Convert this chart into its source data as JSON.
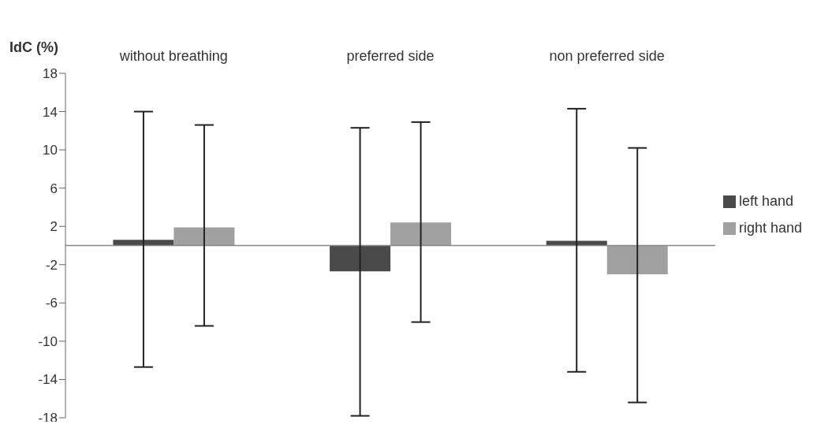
{
  "chart_data": {
    "type": "bar",
    "ylabel": "IdC (%)",
    "categories": [
      "without breathing",
      "preferred side",
      "non preferred side"
    ],
    "series": [
      {
        "name": "left hand",
        "color": "#4a4a4a",
        "values": [
          0.6,
          -2.7,
          0.5
        ],
        "errors": [
          [
            -12.7,
            14.0
          ],
          [
            -17.8,
            12.3
          ],
          [
            -13.2,
            14.3
          ]
        ]
      },
      {
        "name": "right hand",
        "color": "#a0a0a0",
        "values": [
          1.9,
          2.4,
          -3.0
        ],
        "errors": [
          [
            -8.4,
            12.6
          ],
          [
            -8.0,
            12.9
          ],
          [
            -16.4,
            10.2
          ]
        ]
      }
    ],
    "ylim": [
      -18,
      18
    ],
    "yticks": [
      18,
      14,
      10,
      6,
      2,
      -2,
      -6,
      -10,
      -14,
      -18
    ],
    "grid": false,
    "legend": "right"
  }
}
